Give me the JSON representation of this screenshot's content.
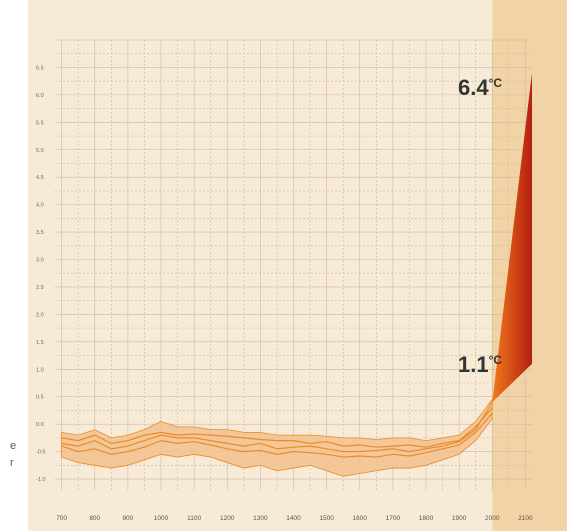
{
  "side_text": {
    "line1": "e",
    "line2": "r"
  },
  "annotations": {
    "high_value": "6.4",
    "low_value": "1.1",
    "unit": "°C"
  },
  "colors": {
    "panel_bg": "#f7ebd7",
    "future_band": "#f2d3a6",
    "grid": "#c9b9a1",
    "history_fill": "#f2c18c",
    "history_line": "#e98b2a",
    "projection_dark": "#b51f10",
    "projection_light": "#f07a1c",
    "label_text": "#333333"
  },
  "chart_data": {
    "type": "line",
    "title": "",
    "xlabel": "",
    "ylabel": "",
    "xlim": [
      680,
      2120
    ],
    "ylim": [
      -1.2,
      7.0
    ],
    "x_ticks": [
      "700",
      "800",
      "900",
      "1000",
      "1100",
      "1200",
      "1300",
      "1400",
      "1500",
      "1600",
      "1700",
      "1800",
      "1900",
      "2000",
      "2100"
    ],
    "y_ticks": [
      "6.5",
      "6.0",
      "5.5",
      "5.0",
      "4.5",
      "4.0",
      "3.5",
      "3.0",
      "2.5",
      "2.0",
      "1.5",
      "1.0",
      "0.5",
      "0.0",
      "-0.5",
      "-1.0"
    ],
    "grid": true,
    "projection_start_x": 2000,
    "series": [
      {
        "x": [
          700,
          750,
          800,
          850,
          900,
          950,
          1000,
          1050,
          1100,
          1150,
          1200,
          1250,
          1300,
          1350,
          1400,
          1450,
          1500,
          1550,
          1600,
          1650,
          1700,
          1750,
          1800,
          1850,
          1900,
          1950,
          2000
        ],
        "values": [
          -0.25,
          -0.3,
          -0.2,
          -0.35,
          -0.3,
          -0.2,
          -0.15,
          -0.2,
          -0.18,
          -0.2,
          -0.22,
          -0.25,
          -0.28,
          -0.3,
          -0.3,
          -0.35,
          -0.32,
          -0.4,
          -0.38,
          -0.42,
          -0.4,
          -0.38,
          -0.42,
          -0.35,
          -0.3,
          -0.05,
          0.3
        ]
      },
      {
        "x": [
          700,
          750,
          800,
          850,
          900,
          950,
          1000,
          1050,
          1100,
          1150,
          1200,
          1250,
          1300,
          1350,
          1400,
          1450,
          1500,
          1550,
          1600,
          1650,
          1700,
          1750,
          1800,
          1850,
          1900,
          1950,
          2000
        ],
        "values": [
          -0.35,
          -0.4,
          -0.3,
          -0.45,
          -0.4,
          -0.3,
          -0.2,
          -0.25,
          -0.25,
          -0.3,
          -0.35,
          -0.4,
          -0.35,
          -0.45,
          -0.42,
          -0.4,
          -0.45,
          -0.5,
          -0.5,
          -0.48,
          -0.45,
          -0.5,
          -0.45,
          -0.4,
          -0.32,
          -0.1,
          0.4
        ]
      },
      {
        "x": [
          700,
          750,
          800,
          850,
          900,
          950,
          1000,
          1050,
          1100,
          1150,
          1200,
          1250,
          1300,
          1350,
          1400,
          1450,
          1500,
          1550,
          1600,
          1650,
          1700,
          1750,
          1800,
          1850,
          1900,
          1950,
          2000
        ],
        "values": [
          -0.4,
          -0.5,
          -0.45,
          -0.55,
          -0.5,
          -0.42,
          -0.3,
          -0.35,
          -0.32,
          -0.38,
          -0.45,
          -0.5,
          -0.48,
          -0.55,
          -0.5,
          -0.52,
          -0.55,
          -0.6,
          -0.58,
          -0.6,
          -0.55,
          -0.58,
          -0.52,
          -0.45,
          -0.38,
          -0.15,
          0.2
        ]
      }
    ],
    "envelope": {
      "x": [
        700,
        750,
        800,
        850,
        900,
        950,
        1000,
        1050,
        1100,
        1150,
        1200,
        1250,
        1300,
        1350,
        1400,
        1450,
        1500,
        1550,
        1600,
        1650,
        1700,
        1750,
        1800,
        1850,
        1900,
        1950,
        2000
      ],
      "upper": [
        -0.15,
        -0.2,
        -0.1,
        -0.25,
        -0.2,
        -0.1,
        0.05,
        -0.05,
        -0.05,
        -0.1,
        -0.1,
        -0.15,
        -0.15,
        -0.2,
        -0.2,
        -0.2,
        -0.22,
        -0.25,
        -0.25,
        -0.28,
        -0.25,
        -0.25,
        -0.3,
        -0.25,
        -0.2,
        0.05,
        0.45
      ],
      "lower": [
        -0.6,
        -0.7,
        -0.75,
        -0.8,
        -0.75,
        -0.65,
        -0.55,
        -0.6,
        -0.55,
        -0.6,
        -0.7,
        -0.8,
        -0.75,
        -0.85,
        -0.8,
        -0.75,
        -0.85,
        -0.95,
        -0.9,
        -0.85,
        -0.8,
        -0.8,
        -0.75,
        -0.65,
        -0.55,
        -0.3,
        0.1
      ]
    },
    "projection": {
      "x_start": 2000,
      "x_end": 2120,
      "start_value": 0.4,
      "high": 6.4,
      "low": 1.1
    }
  }
}
